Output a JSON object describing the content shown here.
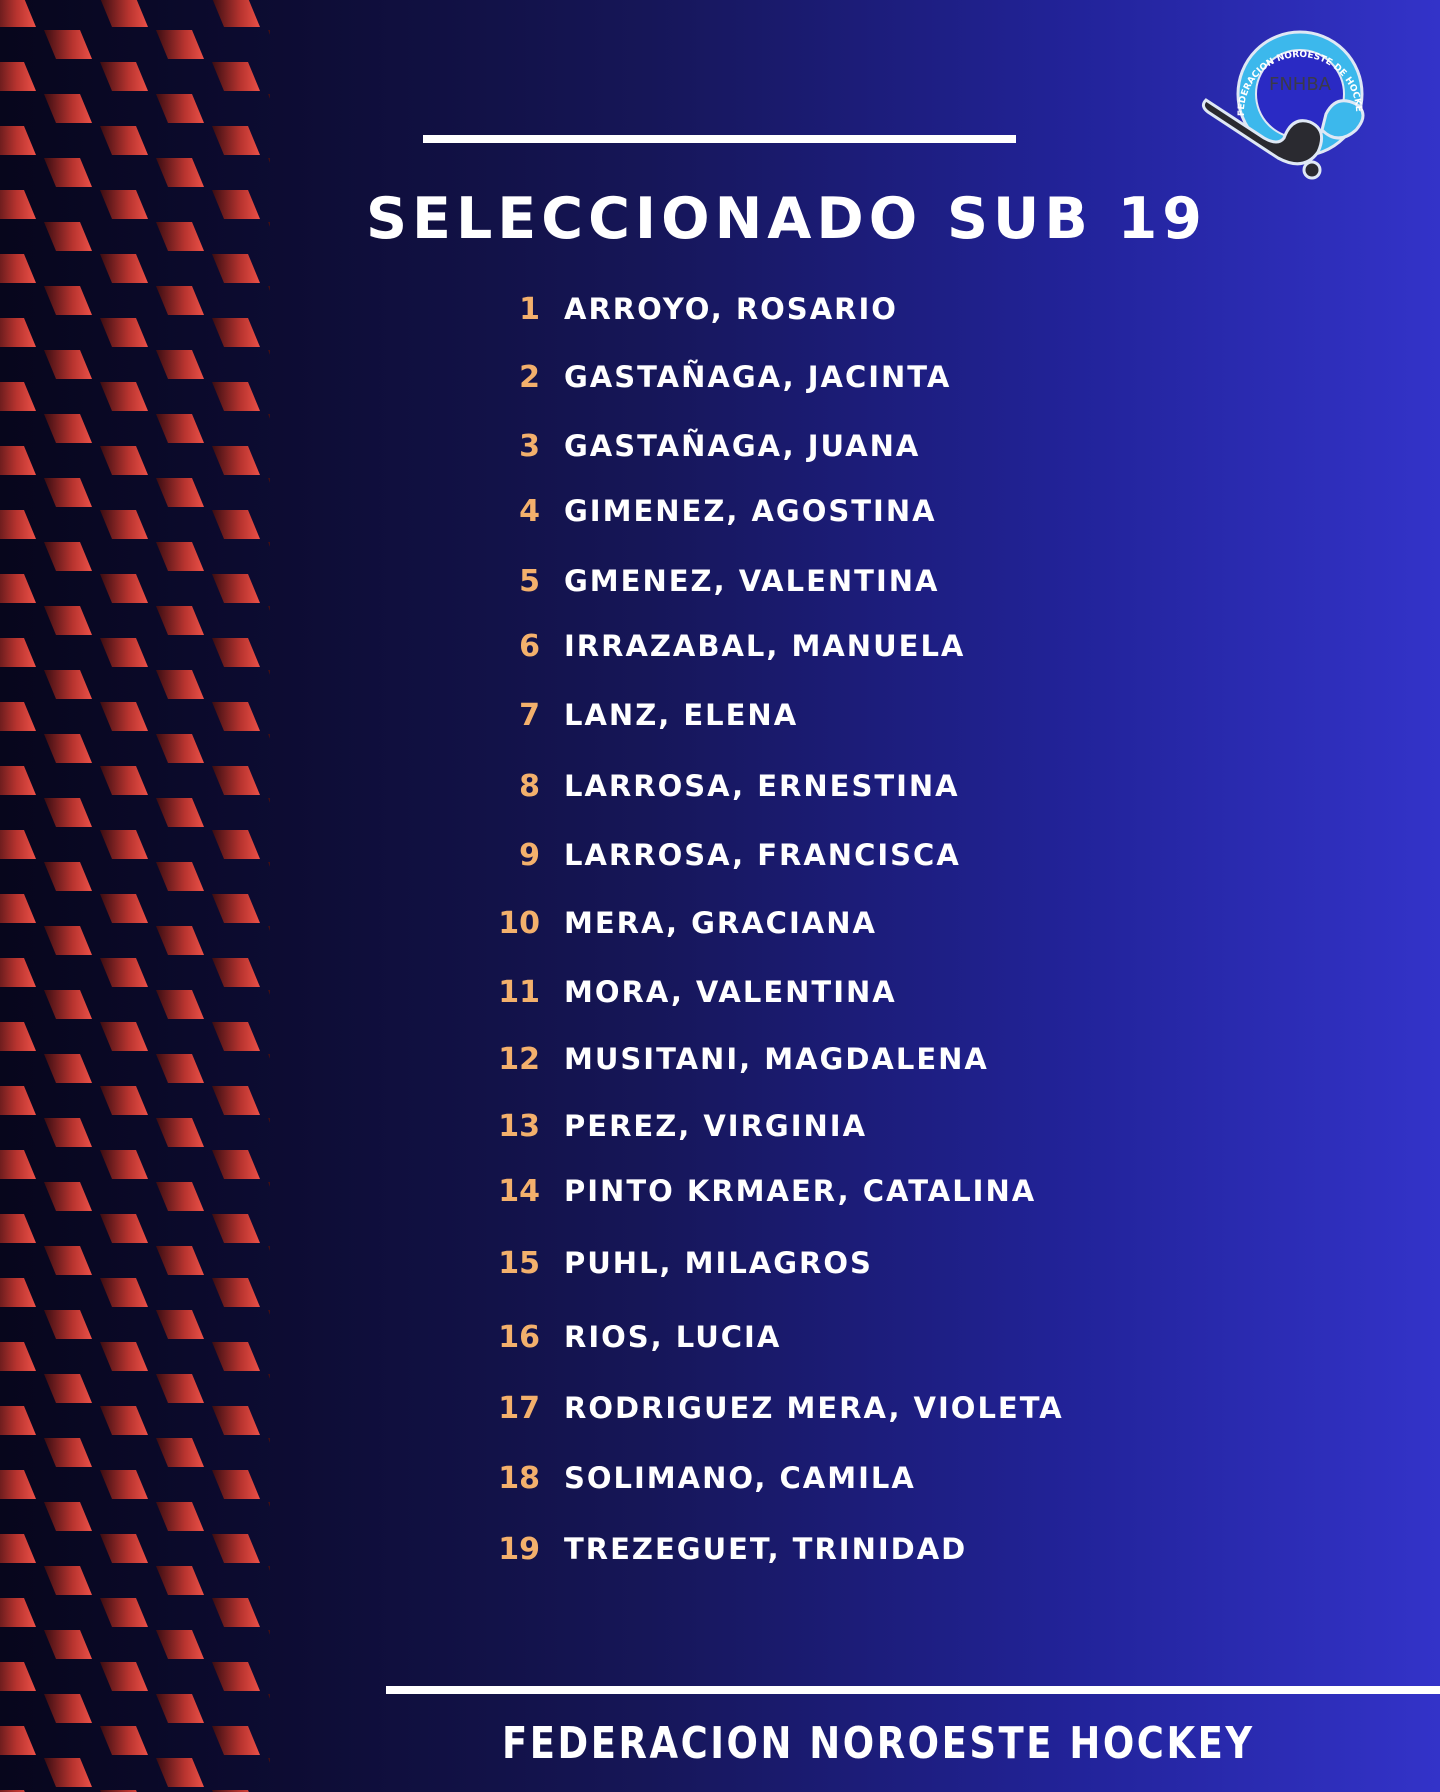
{
  "title": "SELECCIONADO SUB 19",
  "players": [
    {
      "number": "1",
      "name": "ARROYO, ROSARIO"
    },
    {
      "number": "2",
      "name": "GASTAÑAGA, JACINTA"
    },
    {
      "number": "3",
      "name": "GASTAÑAGA, JUANA"
    },
    {
      "number": "4",
      "name": "GIMENEZ, AGOSTINA"
    },
    {
      "number": "5",
      "name": "GMENEZ, VALENTINA"
    },
    {
      "number": "6",
      "name": "IRRAZABAL, MANUELA"
    },
    {
      "number": "7",
      "name": "LANZ, ELENA"
    },
    {
      "number": "8",
      "name": "LARROSA, ERNESTINA"
    },
    {
      "number": "9",
      "name": "LARROSA, FRANCISCA"
    },
    {
      "number": "10",
      "name": "MERA, GRACIANA"
    },
    {
      "number": "11",
      "name": "MORA, VALENTINA"
    },
    {
      "number": "12",
      "name": "MUSITANI, MAGDALENA"
    },
    {
      "number": "13",
      "name": "PEREZ, VIRGINIA"
    },
    {
      "number": "14",
      "name": "PINTO KRMAER, CATALINA"
    },
    {
      "number": "15",
      "name": "PUHL, MILAGROS"
    },
    {
      "number": "16",
      "name": "RIOS, LUCIA"
    },
    {
      "number": "17",
      "name": "RODRIGUEZ MERA, VIOLETA"
    },
    {
      "number": "18",
      "name": "SOLIMANO, CAMILA"
    },
    {
      "number": "19",
      "name": "TREZEGUET, TRINIDAD"
    }
  ],
  "footer": "FEDERACION NOROESTE HOCKEY",
  "logo": {
    "ring_text": "FEDERACION NOROESTE DE HOCKEY BS AS",
    "center_text": "FNHBA"
  },
  "colors": {
    "number": "#f3b06c",
    "pattern": "#e0453f",
    "logo_ring": "#3cb8ec"
  }
}
